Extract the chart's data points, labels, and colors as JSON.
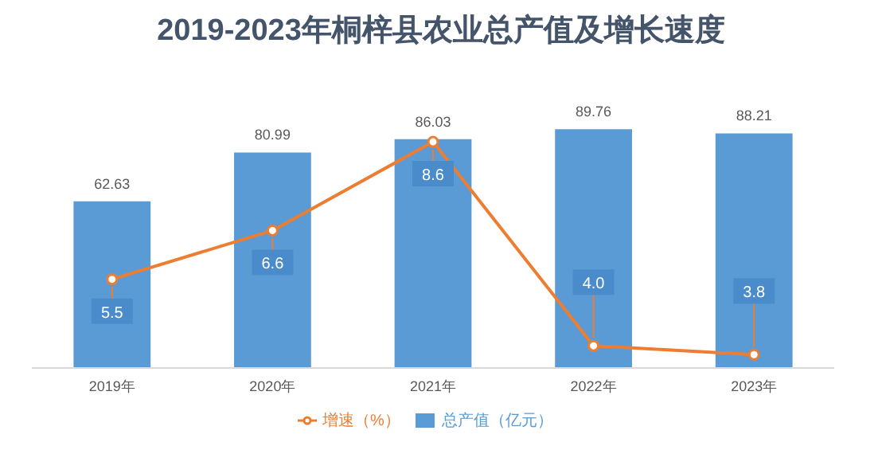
{
  "chart_data": {
    "type": "bar",
    "title": "2019-2023年桐梓县农业总产值及增长速度",
    "categories": [
      "2019年",
      "2020年",
      "2021年",
      "2022年",
      "2023年"
    ],
    "series": [
      {
        "name": "总产值（亿元）",
        "color": "#5b9bd5",
        "values": [
          62.63,
          80.99,
          86.03,
          89.76,
          88.21
        ]
      },
      {
        "name": "增速（%）",
        "type": "line",
        "axis": "y2",
        "color": "#ed7d31",
        "values": [
          5.5,
          6.6,
          8.6,
          4.0,
          3.8
        ],
        "value_labels": [
          "5.5",
          "6.6",
          "8.6",
          "4.0",
          "3.8"
        ]
      }
    ],
    "data_labels": true,
    "legend": "bottom",
    "marker": "circle",
    "tick_labels": "x",
    "grid": false
  }
}
